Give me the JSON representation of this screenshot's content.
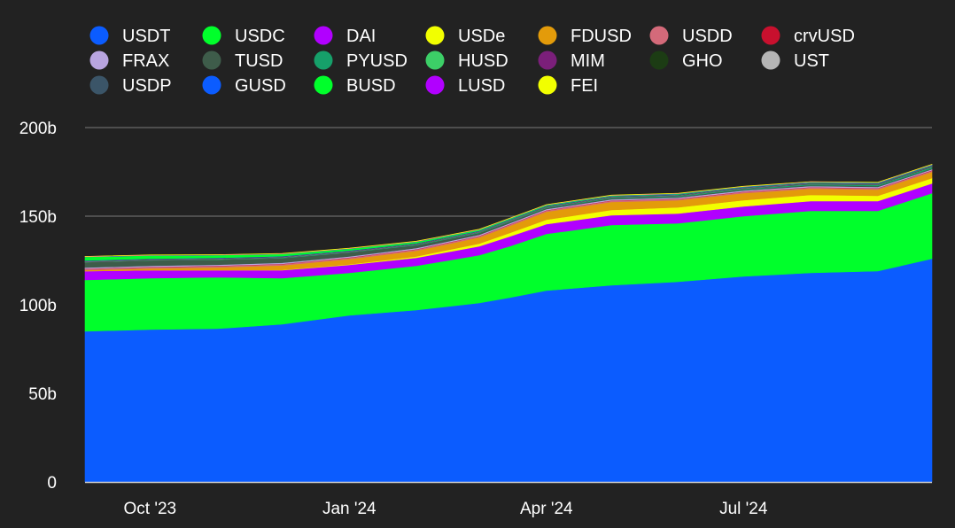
{
  "chart_data": {
    "type": "area",
    "stacked": true,
    "x_labels": [
      "Oct '23",
      "Jan '24",
      "Apr '24",
      "Jul '24"
    ],
    "y_ticks": [
      "0",
      "50b",
      "100b",
      "150b",
      "200b"
    ],
    "ylim": [
      0,
      200
    ],
    "y_unit": "b",
    "grid": true,
    "legend_position": "top-left",
    "x_dates": [
      "2023-09-01",
      "2023-10-01",
      "2023-11-01",
      "2023-12-01",
      "2024-01-01",
      "2024-02-01",
      "2024-03-01",
      "2024-03-15",
      "2024-04-01",
      "2024-05-01",
      "2024-06-01",
      "2024-07-01",
      "2024-08-01",
      "2024-09-01",
      "2024-09-26"
    ],
    "series": [
      {
        "name": "USDT",
        "color": "#0b5cff",
        "values": [
          85,
          86,
          86.5,
          89,
          94,
          97,
          101,
          104,
          108,
          111,
          113,
          116,
          118,
          119,
          126
        ]
      },
      {
        "name": "USDC",
        "color": "#00ff2b",
        "values": [
          29,
          29,
          29,
          26,
          24,
          25,
          27,
          29,
          32,
          34,
          33,
          34,
          35,
          34,
          37
        ]
      },
      {
        "name": "DAI",
        "color": "#b100ff",
        "values": [
          5.0,
          4.5,
          4.0,
          4.5,
          4.5,
          4.5,
          5.0,
          5.5,
          5.5,
          5.5,
          5.5,
          5.5,
          5.5,
          5.5,
          5.5
        ]
      },
      {
        "name": "USDe",
        "color": "#f2ff00",
        "values": [
          0.0,
          0.0,
          0.1,
          0.2,
          0.3,
          0.8,
          1.5,
          2.0,
          2.5,
          3.0,
          3.5,
          3.5,
          3.5,
          3.0,
          3.0
        ]
      },
      {
        "name": "FDUSD",
        "color": "#e39b0a",
        "values": [
          0.5,
          1.0,
          1.5,
          2.5,
          3.0,
          3.2,
          3.5,
          4.0,
          4.5,
          4.5,
          4.0,
          4.0,
          3.5,
          3.5,
          3.5
        ]
      },
      {
        "name": "USDD",
        "color": "#d46a7a",
        "values": [
          0.7,
          0.7,
          0.7,
          0.7,
          0.7,
          0.7,
          0.7,
          0.7,
          0.7,
          0.7,
          0.7,
          0.7,
          0.7,
          0.7,
          0.7
        ]
      },
      {
        "name": "crvUSD",
        "color": "#c8102e",
        "values": [
          0.2,
          0.2,
          0.2,
          0.2,
          0.2,
          0.2,
          0.2,
          0.2,
          0.2,
          0.2,
          0.2,
          0.2,
          0.2,
          0.2,
          0.2
        ]
      },
      {
        "name": "FRAX",
        "color": "#b9a5e0",
        "values": [
          0.6,
          0.6,
          0.6,
          0.6,
          0.6,
          0.6,
          0.6,
          0.6,
          0.6,
          0.6,
          0.6,
          0.6,
          0.6,
          0.6,
          0.6
        ]
      },
      {
        "name": "TUSD",
        "color": "#3e5c4a",
        "values": [
          3.0,
          3.0,
          2.8,
          2.6,
          2.2,
          1.6,
          1.0,
          0.8,
          0.6,
          0.5,
          0.5,
          0.5,
          0.5,
          0.5,
          0.5
        ]
      },
      {
        "name": "PYUSD",
        "color": "#16a06a",
        "values": [
          0.05,
          0.1,
          0.15,
          0.2,
          0.2,
          0.25,
          0.3,
          0.3,
          0.3,
          0.35,
          0.4,
          0.4,
          0.5,
          0.6,
          0.7
        ]
      },
      {
        "name": "HUSD",
        "color": "#3ccf67",
        "values": [
          0.1,
          0.1,
          0.1,
          0.1,
          0.1,
          0.1,
          0.1,
          0.1,
          0.1,
          0.1,
          0.1,
          0.1,
          0.1,
          0.1,
          0.1
        ]
      },
      {
        "name": "MIM",
        "color": "#7b1f7a",
        "values": [
          0.2,
          0.2,
          0.2,
          0.2,
          0.2,
          0.2,
          0.2,
          0.2,
          0.2,
          0.2,
          0.2,
          0.2,
          0.2,
          0.2,
          0.2
        ]
      },
      {
        "name": "GHO",
        "color": "#1c3c14",
        "values": [
          0.05,
          0.05,
          0.05,
          0.05,
          0.05,
          0.05,
          0.05,
          0.05,
          0.05,
          0.05,
          0.05,
          0.1,
          0.1,
          0.15,
          0.2
        ]
      },
      {
        "name": "UST",
        "color": "#b5b5b5",
        "values": [
          0.1,
          0.1,
          0.1,
          0.1,
          0.1,
          0.1,
          0.1,
          0.1,
          0.1,
          0.1,
          0.1,
          0.1,
          0.1,
          0.1,
          0.1
        ]
      },
      {
        "name": "USDP",
        "color": "#3b5568",
        "values": [
          0.4,
          0.4,
          0.4,
          0.4,
          0.4,
          0.4,
          0.4,
          0.4,
          0.4,
          0.4,
          0.4,
          0.4,
          0.4,
          0.4,
          0.4
        ]
      },
      {
        "name": "GUSD",
        "color": "#0b5cff",
        "values": [
          0.1,
          0.1,
          0.1,
          0.1,
          0.1,
          0.1,
          0.1,
          0.1,
          0.1,
          0.1,
          0.1,
          0.1,
          0.1,
          0.1,
          0.1
        ]
      },
      {
        "name": "BUSD",
        "color": "#00ff2b",
        "values": [
          2.0,
          1.8,
          1.5,
          1.2,
          1.0,
          0.8,
          0.6,
          0.5,
          0.4,
          0.3,
          0.3,
          0.2,
          0.2,
          0.2,
          0.2
        ]
      },
      {
        "name": "LUSD",
        "color": "#b100ff",
        "values": [
          0.2,
          0.2,
          0.2,
          0.2,
          0.2,
          0.2,
          0.2,
          0.2,
          0.2,
          0.2,
          0.2,
          0.2,
          0.2,
          0.2,
          0.2
        ]
      },
      {
        "name": "FEI",
        "color": "#f2ff00",
        "values": [
          0.1,
          0.1,
          0.1,
          0.1,
          0.1,
          0.1,
          0.1,
          0.1,
          0.1,
          0.1,
          0.1,
          0.1,
          0.1,
          0.1,
          0.1
        ]
      }
    ]
  }
}
